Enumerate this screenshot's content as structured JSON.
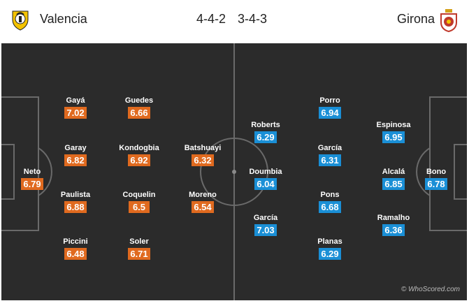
{
  "header": {
    "home_team": "Valencia",
    "home_formation": "4-4-2",
    "away_formation": "3-4-3",
    "away_team": "Girona"
  },
  "colors": {
    "home_rating": "#e06a1f",
    "away_rating": "#1a8fd6",
    "pitch": "#2b2b2b"
  },
  "home_players": [
    {
      "name": "Gayá",
      "rating": "7.02"
    },
    {
      "name": "Guedes",
      "rating": "6.66"
    },
    {
      "name": "Garay",
      "rating": "6.82"
    },
    {
      "name": "Kondogbia",
      "rating": "6.92"
    },
    {
      "name": "Batshuayi",
      "rating": "6.32"
    },
    {
      "name": "Neto",
      "rating": "6.79"
    },
    {
      "name": "Paulista",
      "rating": "6.88"
    },
    {
      "name": "Coquelin",
      "rating": "6.5"
    },
    {
      "name": "Moreno",
      "rating": "6.54"
    },
    {
      "name": "Piccini",
      "rating": "6.48"
    },
    {
      "name": "Soler",
      "rating": "6.71"
    }
  ],
  "away_players": [
    {
      "name": "Porro",
      "rating": "6.94"
    },
    {
      "name": "Roberts",
      "rating": "6.29"
    },
    {
      "name": "Espinosa",
      "rating": "6.95"
    },
    {
      "name": "García",
      "rating": "6.31"
    },
    {
      "name": "Doumbia",
      "rating": "6.04"
    },
    {
      "name": "Alcalá",
      "rating": "6.85"
    },
    {
      "name": "Bono",
      "rating": "6.78"
    },
    {
      "name": "Pons",
      "rating": "6.68"
    },
    {
      "name": "García",
      "rating": "7.03"
    },
    {
      "name": "Ramalho",
      "rating": "6.36"
    },
    {
      "name": "Planas",
      "rating": "6.29"
    }
  ],
  "watermark": "© WhoScored.com"
}
